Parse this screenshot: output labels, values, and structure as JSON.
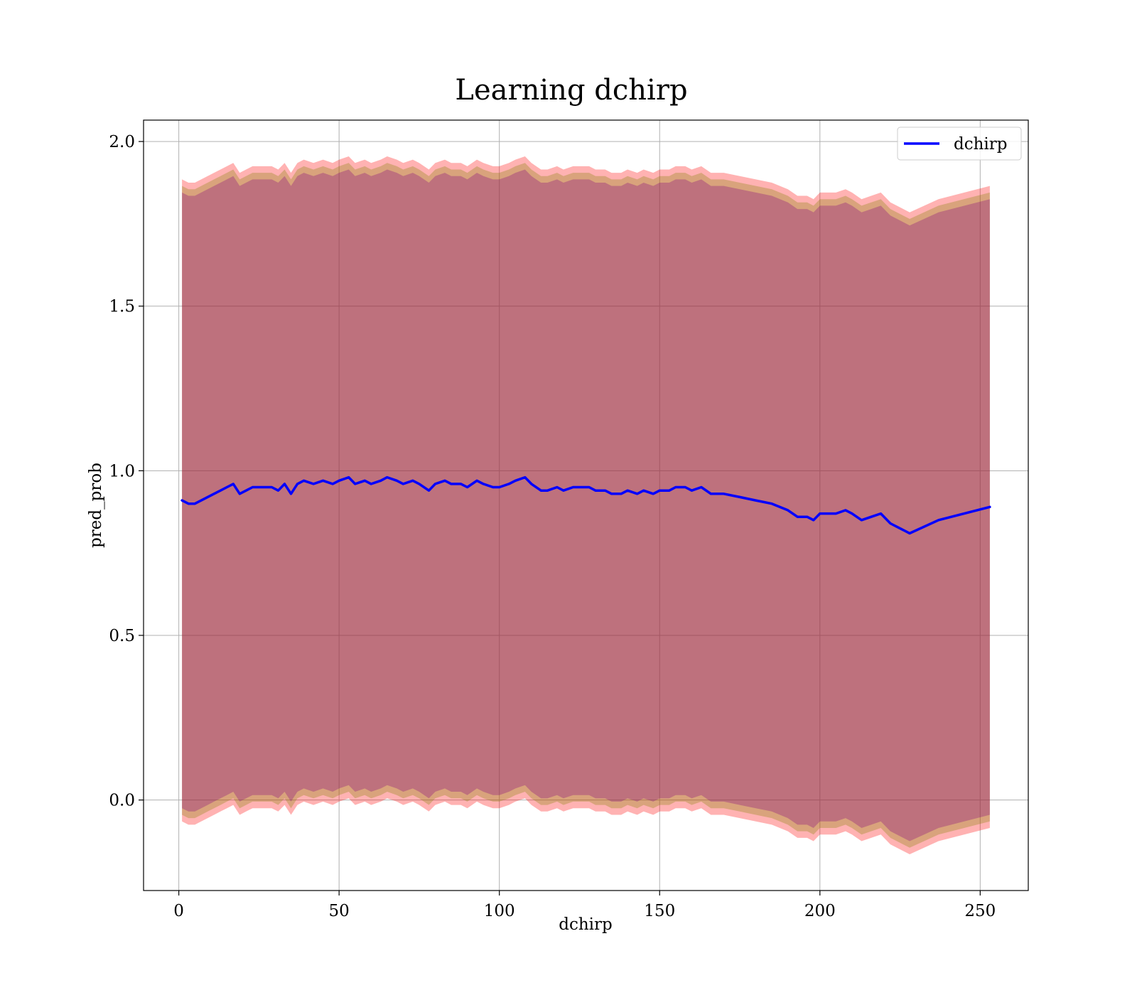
{
  "chart_data": {
    "type": "area",
    "title": "Learning dchirp",
    "xlabel": "dchirp",
    "ylabel": "pred_prob",
    "xlim": [
      -11,
      265
    ],
    "ylim": [
      -0.275,
      2.065
    ],
    "xticks": [
      0,
      50,
      100,
      150,
      200,
      250
    ],
    "yticks": [
      0.0,
      0.5,
      1.0,
      1.5,
      2.0
    ],
    "xtick_labels": [
      "0",
      "50",
      "100",
      "150",
      "200",
      "250"
    ],
    "ytick_labels": [
      "0.0",
      "0.5",
      "1.0",
      "1.5",
      "2.0"
    ],
    "grid": true,
    "legend": {
      "position": "top-right",
      "entries": [
        "dchirp"
      ]
    },
    "colors": {
      "line": "#0000ff",
      "band_outer": "#ff0000",
      "band_mid": "#808000",
      "band_inner": "#800080",
      "grid": "#b0b0b0"
    },
    "x": [
      1,
      3,
      5,
      7,
      9,
      11,
      13,
      15,
      17,
      19,
      21,
      23,
      25,
      27,
      29,
      31,
      33,
      35,
      37,
      39,
      42,
      45,
      48,
      50,
      53,
      55,
      58,
      60,
      63,
      65,
      68,
      70,
      73,
      75,
      78,
      80,
      83,
      85,
      88,
      90,
      93,
      95,
      98,
      100,
      103,
      105,
      108,
      110,
      113,
      115,
      118,
      120,
      123,
      125,
      128,
      130,
      133,
      135,
      138,
      140,
      143,
      145,
      148,
      150,
      153,
      155,
      158,
      160,
      163,
      166,
      170,
      175,
      180,
      185,
      190,
      193,
      196,
      198,
      200,
      203,
      205,
      208,
      210,
      213,
      216,
      219,
      222,
      228,
      237,
      253
    ],
    "series": [
      {
        "name": "dchirp",
        "values": [
          0.91,
          0.9,
          0.9,
          0.91,
          0.92,
          0.93,
          0.94,
          0.95,
          0.96,
          0.93,
          0.94,
          0.95,
          0.95,
          0.95,
          0.95,
          0.94,
          0.96,
          0.93,
          0.96,
          0.97,
          0.96,
          0.97,
          0.96,
          0.97,
          0.98,
          0.96,
          0.97,
          0.96,
          0.97,
          0.98,
          0.97,
          0.96,
          0.97,
          0.96,
          0.94,
          0.96,
          0.97,
          0.96,
          0.96,
          0.95,
          0.97,
          0.96,
          0.95,
          0.95,
          0.96,
          0.97,
          0.98,
          0.96,
          0.94,
          0.94,
          0.95,
          0.94,
          0.95,
          0.95,
          0.95,
          0.94,
          0.94,
          0.93,
          0.93,
          0.94,
          0.93,
          0.94,
          0.93,
          0.94,
          0.94,
          0.95,
          0.95,
          0.94,
          0.95,
          0.93,
          0.93,
          0.92,
          0.91,
          0.9,
          0.88,
          0.86,
          0.86,
          0.85,
          0.87,
          0.87,
          0.87,
          0.88,
          0.87,
          0.85,
          0.86,
          0.87,
          0.84,
          0.81,
          0.85,
          0.89
        ]
      }
    ],
    "bands": [
      {
        "role": "outer",
        "half_width": 0.975
      },
      {
        "role": "mid",
        "half_width": 0.955
      },
      {
        "role": "inner",
        "half_width": 0.935
      }
    ]
  }
}
